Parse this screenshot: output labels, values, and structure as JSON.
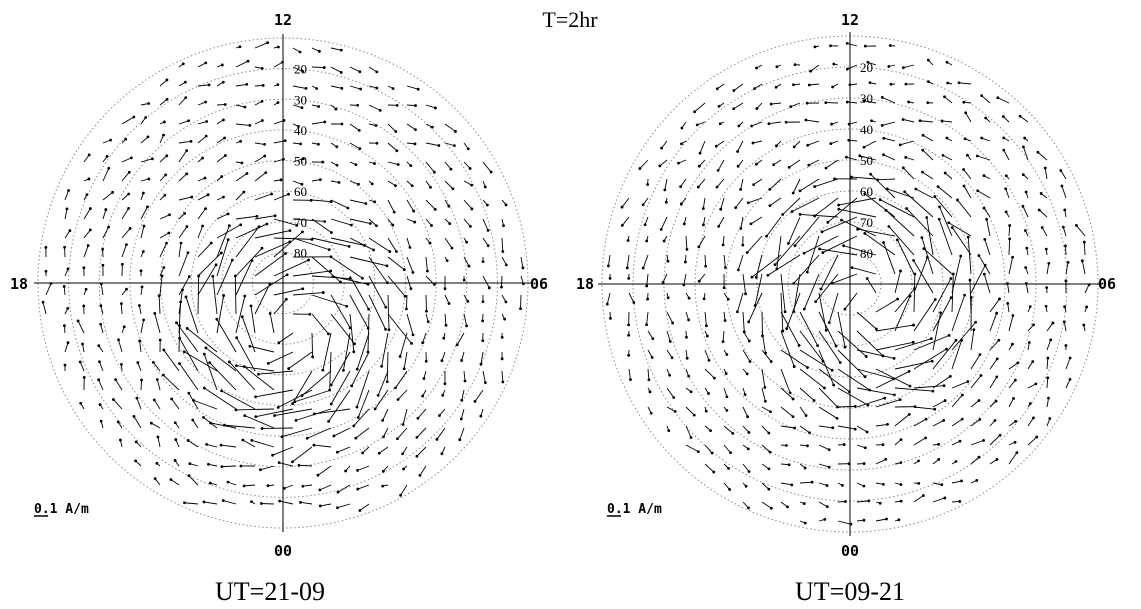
{
  "figure": {
    "title": "T=2hr",
    "scale_label": "0.1 A/m",
    "background": "#ffffff",
    "ink_color": "#000000",
    "circle_color": "#8a8a8a",
    "panels": [
      {
        "caption": "UT=21-09",
        "mlt_top": "12",
        "mlt_bottom": "00",
        "mlt_left": "18",
        "mlt_right": "06",
        "latitude_labels": [
          "20",
          "30",
          "40",
          "50",
          "60",
          "70",
          "80"
        ],
        "vortex_sense": "clockwise"
      },
      {
        "caption": "UT=09-21",
        "mlt_top": "12",
        "mlt_bottom": "00",
        "mlt_left": "18",
        "mlt_right": "06",
        "latitude_labels": [
          "20",
          "30",
          "40",
          "50",
          "60",
          "70",
          "80"
        ],
        "vortex_sense": "counterclockwise"
      }
    ]
  }
}
